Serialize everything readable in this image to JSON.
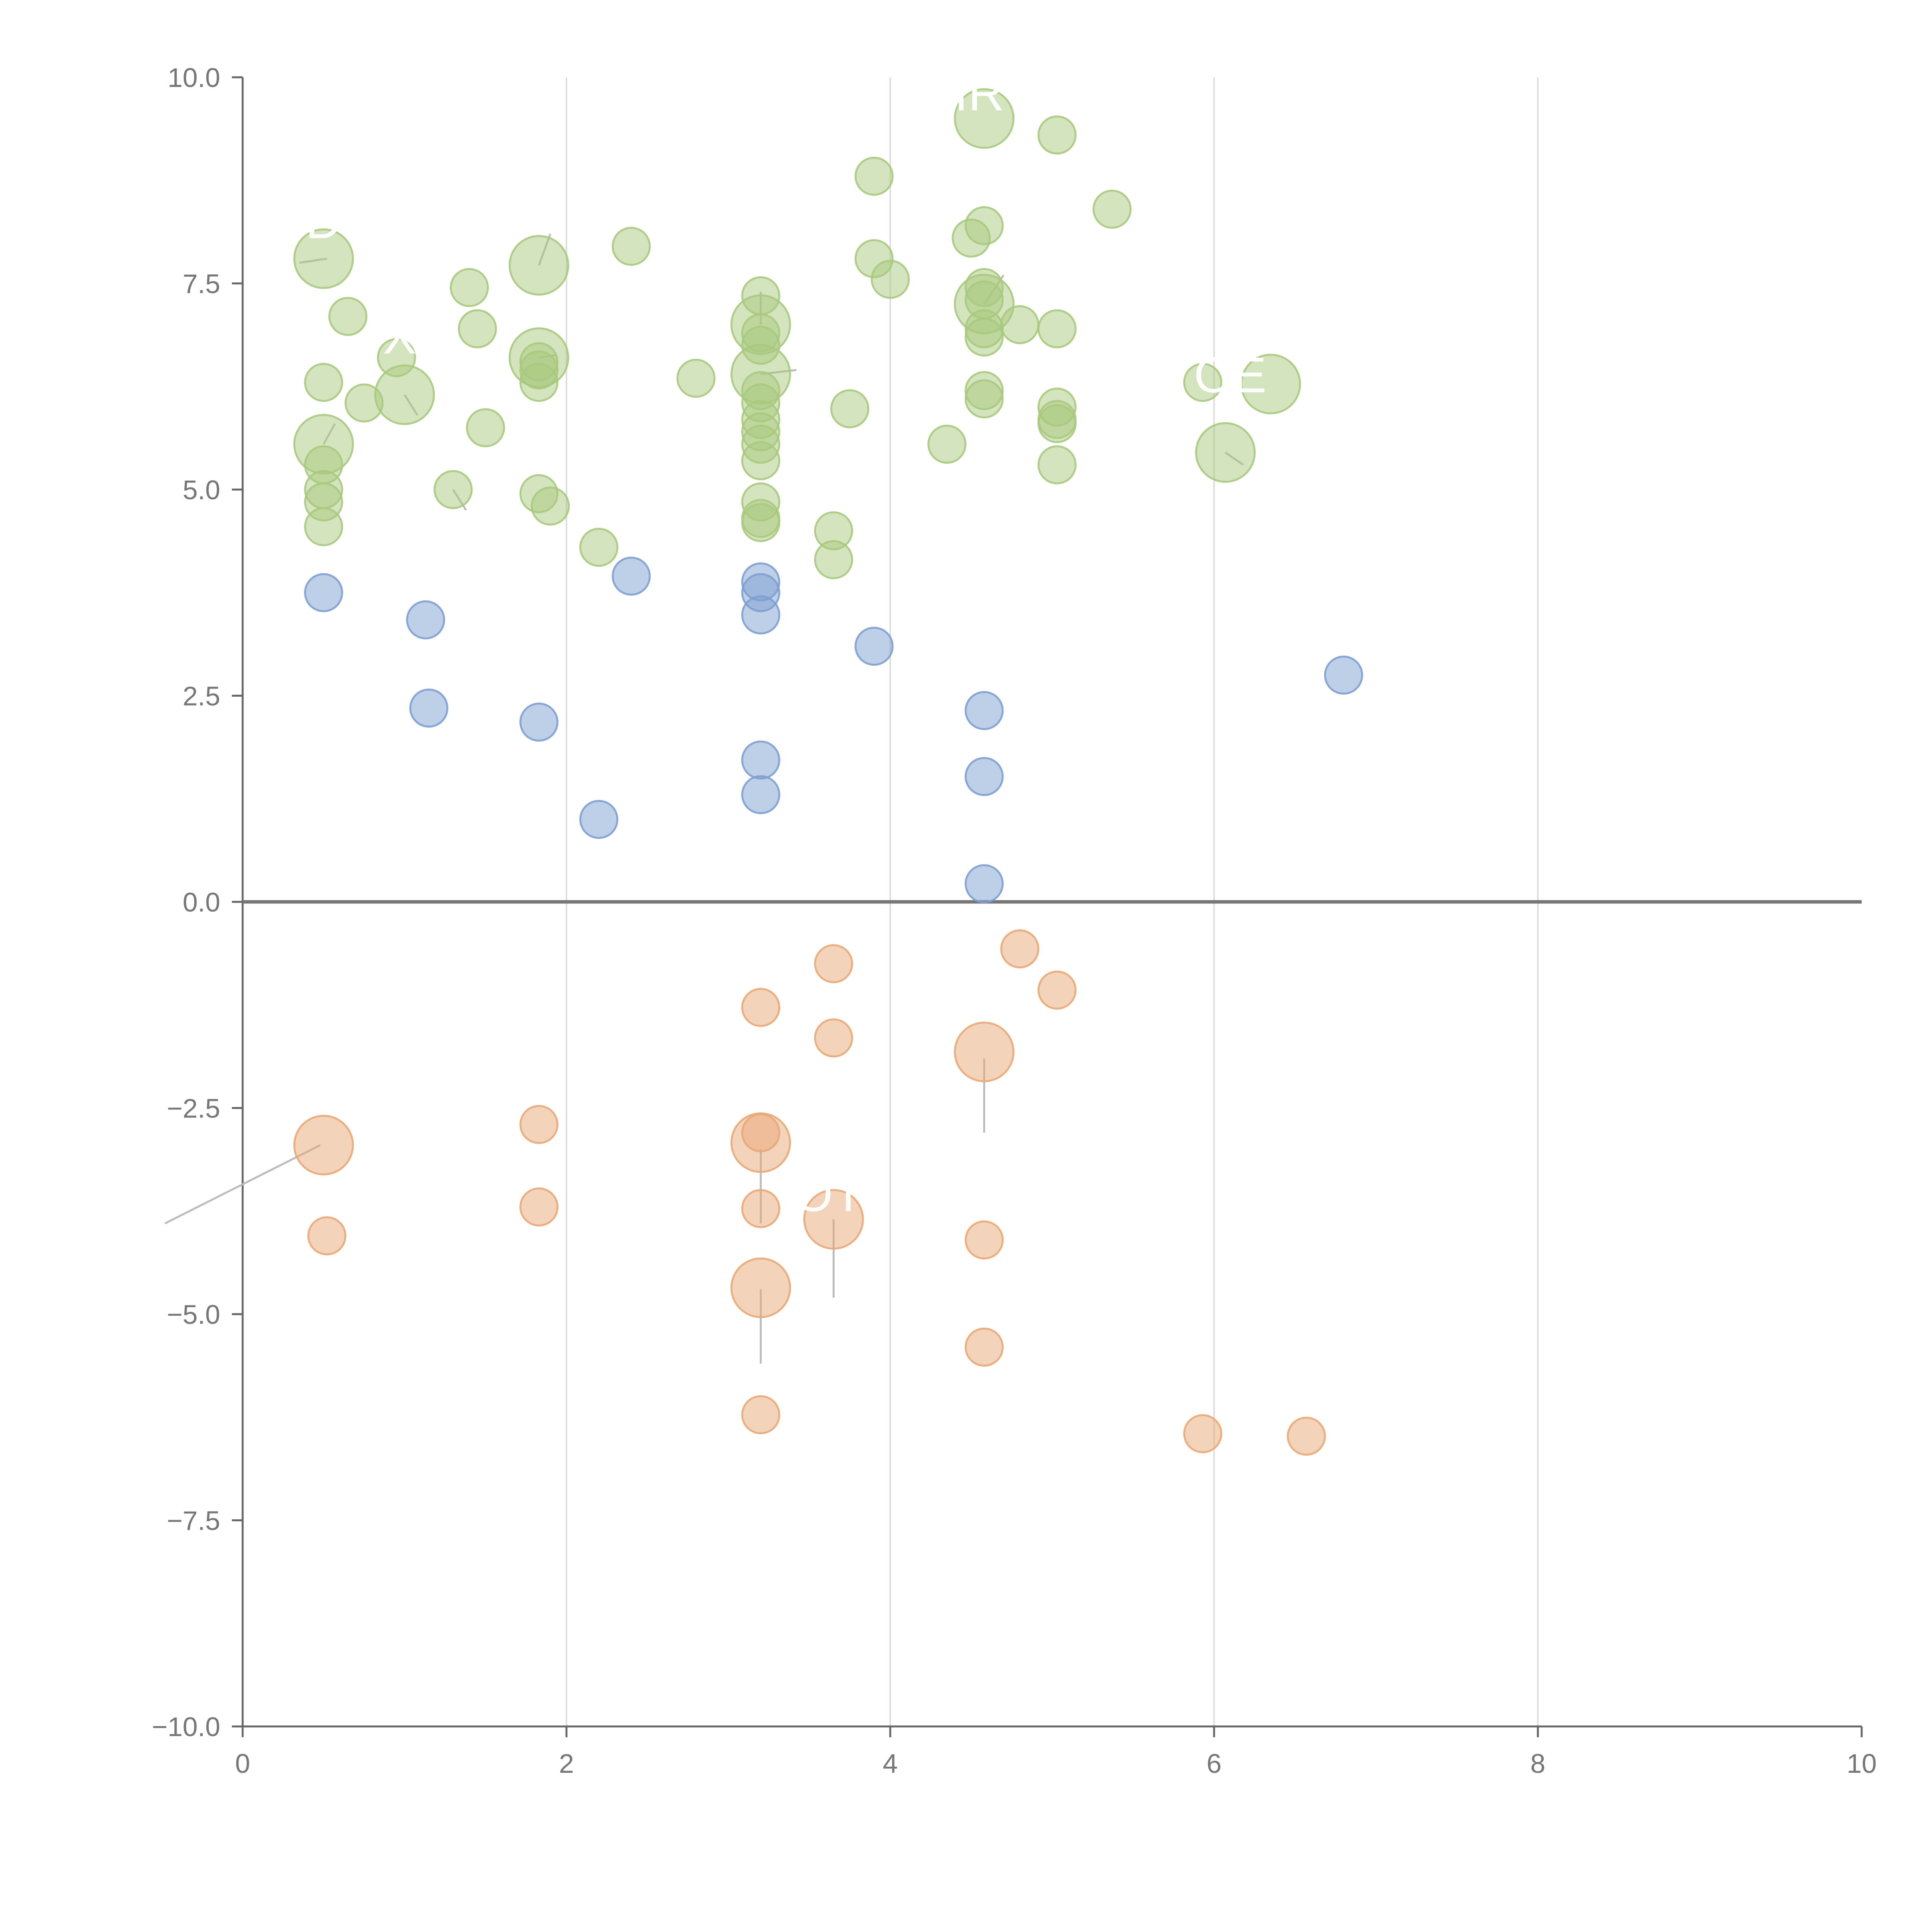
{
  "chart_data": {
    "type": "scatter",
    "title": "",
    "xlabel": "",
    "ylabel": "",
    "xlim": [
      0,
      10
    ],
    "ylim": [
      -10,
      10
    ],
    "x_ticks": [
      "0",
      "2",
      "4",
      "6",
      "8",
      "10"
    ],
    "y_ticks": [
      "10.0",
      "7.5",
      "5.0",
      "2.5",
      "0.0",
      "−2.5",
      "−5.0",
      "−7.5",
      "−10.0"
    ],
    "grid": "vertical",
    "zero_line": true,
    "colors": {
      "green": "#a9c97e",
      "blue": "#7e9fd1",
      "orange": "#e9a877"
    },
    "series": [
      {
        "color": "green",
        "points": [
          [
            0.5,
            7.8,
            2.5
          ],
          [
            0.5,
            6.3,
            1
          ],
          [
            0.5,
            5.55,
            2.5
          ],
          [
            0.5,
            5.3,
            1
          ],
          [
            0.5,
            5.0,
            1
          ],
          [
            0.5,
            4.85,
            1
          ],
          [
            0.5,
            4.55,
            1
          ],
          [
            0.65,
            7.1,
            1
          ],
          [
            0.75,
            6.05,
            1
          ],
          [
            0.95,
            6.6,
            1
          ],
          [
            1.0,
            6.15,
            2.5
          ],
          [
            1.3,
            5.0,
            1
          ],
          [
            1.4,
            7.45,
            1
          ],
          [
            1.45,
            6.95,
            1
          ],
          [
            1.5,
            5.75,
            1
          ],
          [
            1.83,
            7.72,
            2.5
          ],
          [
            1.83,
            6.6,
            2.5
          ],
          [
            1.83,
            6.45,
            1
          ],
          [
            1.83,
            6.3,
            1
          ],
          [
            1.83,
            6.55,
            1
          ],
          [
            1.83,
            4.95,
            1
          ],
          [
            1.9,
            4.8,
            1
          ],
          [
            2.2,
            4.3,
            1
          ],
          [
            2.4,
            7.95,
            1
          ],
          [
            2.8,
            6.35,
            1
          ],
          [
            3.2,
            7.35,
            1
          ],
          [
            3.2,
            7.0,
            2.5
          ],
          [
            3.2,
            6.9,
            1
          ],
          [
            3.2,
            6.75,
            1
          ],
          [
            3.2,
            6.4,
            2.5
          ],
          [
            3.2,
            6.2,
            1
          ],
          [
            3.2,
            6.05,
            1
          ],
          [
            3.2,
            5.85,
            1
          ],
          [
            3.2,
            5.7,
            1
          ],
          [
            3.2,
            5.55,
            1
          ],
          [
            3.2,
            5.35,
            1
          ],
          [
            3.2,
            4.85,
            1
          ],
          [
            3.2,
            4.65,
            1
          ],
          [
            3.2,
            4.6,
            1
          ],
          [
            3.65,
            4.5,
            1
          ],
          [
            3.65,
            4.15,
            1
          ],
          [
            3.75,
            5.98,
            1
          ],
          [
            3.9,
            8.8,
            1
          ],
          [
            3.9,
            7.8,
            1
          ],
          [
            4.0,
            7.55,
            1
          ],
          [
            4.35,
            5.55,
            1
          ],
          [
            4.5,
            8.05,
            1
          ],
          [
            4.58,
            9.5,
            2.5
          ],
          [
            4.58,
            8.2,
            1
          ],
          [
            4.58,
            7.45,
            1
          ],
          [
            4.58,
            7.25,
            2.5
          ],
          [
            4.58,
            7.3,
            1
          ],
          [
            4.58,
            6.95,
            1
          ],
          [
            4.58,
            6.85,
            1
          ],
          [
            4.58,
            6.2,
            1
          ],
          [
            4.58,
            6.1,
            1
          ],
          [
            4.8,
            7.0,
            1
          ],
          [
            5.03,
            9.3,
            1
          ],
          [
            5.03,
            6.95,
            1
          ],
          [
            5.03,
            6.0,
            1
          ],
          [
            5.03,
            5.85,
            1
          ],
          [
            5.03,
            5.8,
            1
          ],
          [
            5.03,
            5.3,
            1
          ],
          [
            5.37,
            8.4,
            1
          ],
          [
            5.93,
            6.3,
            1
          ],
          [
            6.07,
            5.45,
            2.5
          ],
          [
            6.35,
            6.28,
            2.5
          ]
        ]
      },
      {
        "color": "blue",
        "points": [
          [
            0.5,
            3.75,
            1
          ],
          [
            1.13,
            3.42,
            1
          ],
          [
            1.15,
            2.35,
            1
          ],
          [
            1.83,
            2.18,
            1
          ],
          [
            2.2,
            1.0,
            1
          ],
          [
            2.4,
            3.95,
            1
          ],
          [
            3.2,
            3.88,
            1
          ],
          [
            3.2,
            3.75,
            1
          ],
          [
            3.2,
            3.48,
            1
          ],
          [
            3.2,
            1.72,
            1
          ],
          [
            3.2,
            1.3,
            1
          ],
          [
            3.9,
            3.1,
            1
          ],
          [
            4.58,
            2.32,
            1
          ],
          [
            4.58,
            1.52,
            1
          ],
          [
            4.58,
            0.22,
            1
          ],
          [
            6.8,
            2.75,
            1
          ]
        ]
      },
      {
        "color": "orange",
        "points": [
          [
            0.5,
            -2.95,
            2.5
          ],
          [
            0.52,
            -4.05,
            1
          ],
          [
            1.83,
            -2.7,
            1
          ],
          [
            1.83,
            -3.7,
            1
          ],
          [
            3.2,
            -1.28,
            1
          ],
          [
            3.2,
            -2.8,
            1
          ],
          [
            3.2,
            -2.92,
            2.5
          ],
          [
            3.2,
            -3.72,
            1
          ],
          [
            3.2,
            -4.68,
            2.5
          ],
          [
            3.2,
            -6.22,
            1
          ],
          [
            3.65,
            -0.75,
            1
          ],
          [
            3.65,
            -1.65,
            1
          ],
          [
            3.65,
            -3.85,
            2.5
          ],
          [
            4.58,
            -1.82,
            2.5
          ],
          [
            4.58,
            -4.1,
            1
          ],
          [
            4.58,
            -5.4,
            1
          ],
          [
            4.8,
            -0.57,
            1
          ],
          [
            5.03,
            -1.07,
            1
          ],
          [
            5.93,
            -6.45,
            1
          ],
          [
            6.57,
            -6.48,
            1
          ]
        ]
      }
    ],
    "annotations": [
      {
        "text": "D",
        "x": 0.5,
        "y": 8.05
      },
      {
        "text": "X",
        "x": 0.97,
        "y": 6.65
      },
      {
        "text": "IR",
        "x": 4.55,
        "y": 9.6
      },
      {
        "text": "OE",
        "x": 6.1,
        "y": 6.18
      },
      {
        "text": "OT",
        "x": 3.62,
        "y": -3.75
      }
    ],
    "leaders": [
      [
        1.83,
        7.72,
        1.9,
        8.1
      ],
      [
        3.2,
        7.0,
        3.2,
        7.4
      ],
      [
        3.2,
        6.4,
        3.42,
        6.45
      ],
      [
        4.58,
        7.25,
        4.7,
        7.6
      ],
      [
        1.83,
        6.6,
        1.93,
        6.63
      ],
      [
        0.5,
        5.55,
        0.57,
        5.8
      ],
      [
        1.0,
        6.15,
        1.08,
        5.9
      ],
      [
        1.3,
        5.0,
        1.38,
        4.75
      ],
      [
        6.07,
        5.45,
        6.18,
        5.3
      ],
      [
        0.52,
        7.8,
        0.35,
        7.75
      ],
      [
        0.48,
        -2.95,
        -0.48,
        -3.9
      ],
      [
        3.2,
        -3.0,
        3.2,
        -3.9
      ],
      [
        3.2,
        -4.7,
        3.2,
        -5.6
      ],
      [
        3.65,
        -3.85,
        3.65,
        -4.8
      ],
      [
        4.58,
        -1.9,
        4.58,
        -2.8
      ]
    ]
  }
}
